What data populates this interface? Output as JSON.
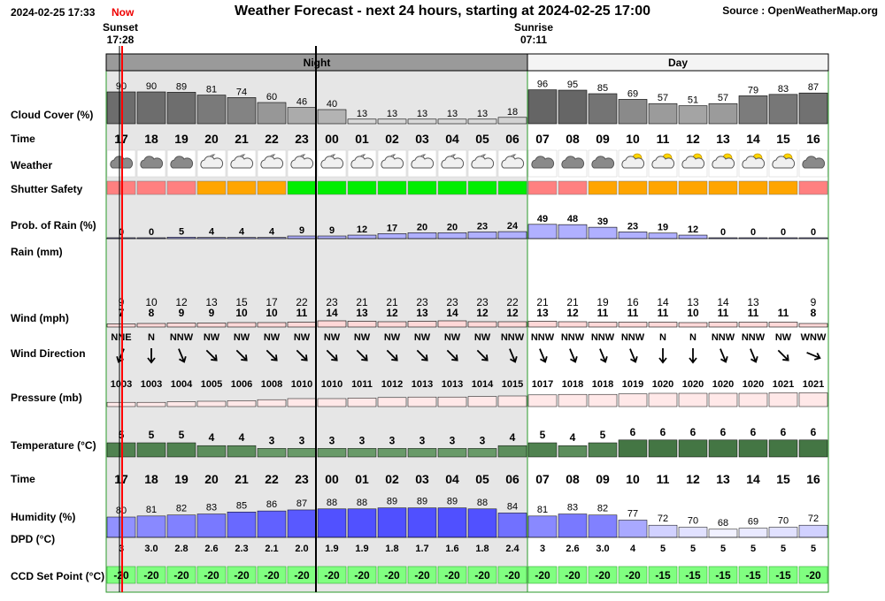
{
  "header": {
    "datetime": "2024-02-25 17:33",
    "now_label": "Now",
    "title": "Weather Forecast - next 24 hours, starting at 2024-02-25 17:00",
    "source": "Source : OpenWeatherMap.org"
  },
  "sunset": {
    "label": "Sunset",
    "time": "17:28"
  },
  "sunrise": {
    "label": "Sunrise",
    "time": "07:11"
  },
  "bands": {
    "night": "Night",
    "day": "Day"
  },
  "row_labels": {
    "cloud": "Cloud Cover (%)",
    "time": "Time",
    "weather": "Weather",
    "shutter": "Shutter Safety",
    "rain_prob": "Prob. of Rain (%)",
    "rain": "Rain (mm)",
    "wind": "Wind (mph)",
    "wind_dir": "Wind Direction",
    "pressure": "Pressure (mb)",
    "temperature": "Temperature (°C)",
    "time2": "Time",
    "humidity": "Humidity (%)",
    "dpd": "DPD (°C)",
    "ccd": "CCD Set Point (°C)"
  },
  "colors": {
    "night_band": "#9a9a9a",
    "night_bg": "#e6e6e6",
    "grid_green": "#2a9a2a",
    "shutter_red": "#ff8080",
    "shutter_orange": "#ffa500",
    "shutter_green": "#00ee00",
    "rain_fill": "#b0b0ff",
    "wind_fill": "#ffd8d8",
    "pressure_fill": "#ffe8e8",
    "temp_fill": "#a0d0a0",
    "ccd_fill": "#80ff80",
    "now_line": "#ff0000"
  },
  "chart_data": {
    "type": "table",
    "hours": [
      "17",
      "18",
      "19",
      "20",
      "21",
      "22",
      "23",
      "00",
      "01",
      "02",
      "03",
      "04",
      "05",
      "06",
      "07",
      "08",
      "09",
      "10",
      "11",
      "12",
      "13",
      "14",
      "15",
      "16"
    ],
    "cloud_cover": [
      90,
      90,
      89,
      81,
      74,
      60,
      46,
      40,
      13,
      13,
      13,
      13,
      13,
      18,
      96,
      95,
      85,
      69,
      57,
      51,
      57,
      79,
      83,
      87
    ],
    "weather_icons": [
      "cloudy",
      "cloudy",
      "cloudy",
      "partly-cloudy-night",
      "partly-cloudy-night",
      "partly-cloudy-night",
      "partly-cloudy-night",
      "partly-cloudy-night",
      "partly-cloudy-night",
      "partly-cloudy-night",
      "partly-cloudy-night",
      "partly-cloudy-night",
      "partly-cloudy-night",
      "partly-cloudy-night",
      "cloudy",
      "cloudy",
      "cloudy",
      "partly-cloudy-day",
      "partly-cloudy-day",
      "partly-cloudy-day",
      "partly-cloudy-day",
      "partly-cloudy-day",
      "partly-cloudy-day",
      "cloudy"
    ],
    "shutter_safety": [
      "red",
      "red",
      "red",
      "orange",
      "orange",
      "orange",
      "green",
      "green",
      "green",
      "green",
      "green",
      "green",
      "green",
      "green",
      "red",
      "red",
      "orange",
      "orange",
      "orange",
      "orange",
      "orange",
      "orange",
      "orange",
      "red"
    ],
    "rain_probability": [
      0,
      0,
      5,
      4,
      4,
      4,
      9,
      9,
      12,
      17,
      20,
      20,
      23,
      24,
      49,
      48,
      39,
      23,
      19,
      12,
      0,
      0,
      0,
      0
    ],
    "wind_gust": [
      "9",
      "10",
      "12",
      "13",
      "15",
      "17",
      "22",
      "23",
      "21",
      "21",
      "23",
      "23",
      "23",
      "22",
      "21",
      "21",
      "19",
      "16",
      "14",
      "13",
      "14",
      "13",
      "",
      "9"
    ],
    "wind_speed": [
      "7",
      "8",
      "9",
      "9",
      "10",
      "10",
      "11",
      "14",
      "13",
      "12",
      "13",
      "14",
      "12",
      "12",
      "13",
      "12",
      "11",
      "11",
      "11",
      "10",
      "11",
      "11",
      "11",
      "8"
    ],
    "wind_direction": [
      "NNE",
      "N",
      "NNW",
      "NW",
      "NW",
      "NW",
      "NW",
      "NW",
      "NW",
      "NW",
      "NW",
      "NW",
      "NW",
      "NNW",
      "NNW",
      "NNW",
      "NNW",
      "NNW",
      "N",
      "N",
      "NNW",
      "NNW",
      "NW",
      "WNW"
    ],
    "pressure": [
      1003,
      1003,
      1004,
      1005,
      1006,
      1008,
      1010,
      1010,
      1011,
      1012,
      1013,
      1013,
      1014,
      1015,
      1017,
      1018,
      1018,
      1019,
      1020,
      1020,
      1020,
      1020,
      1021,
      1021
    ],
    "temperature": [
      5,
      5,
      5,
      4,
      4,
      3,
      3,
      3,
      3,
      3,
      3,
      3,
      3,
      4,
      5,
      4,
      5,
      6,
      6,
      6,
      6,
      6,
      6,
      6
    ],
    "humidity": [
      80,
      81,
      82,
      83,
      85,
      86,
      87,
      88,
      88,
      89,
      89,
      89,
      88,
      84,
      81,
      83,
      82,
      77,
      72,
      70,
      68,
      69,
      70,
      72
    ],
    "dpd": [
      "3",
      "3.0",
      "2.8",
      "2.6",
      "2.3",
      "2.1",
      "2.0",
      "1.9",
      "1.9",
      "1.8",
      "1.7",
      "1.6",
      "1.8",
      "2.4",
      "3",
      "2.6",
      "3.0",
      "4",
      "5",
      "5",
      "5",
      "5",
      "5",
      "5"
    ],
    "ccd_set_point": [
      -20,
      -20,
      -20,
      -20,
      -20,
      -20,
      -20,
      -20,
      -20,
      -20,
      -20,
      -20,
      -20,
      -20,
      -20,
      -20,
      -20,
      -20,
      -15,
      -15,
      -15,
      -15,
      -15,
      -20
    ]
  }
}
